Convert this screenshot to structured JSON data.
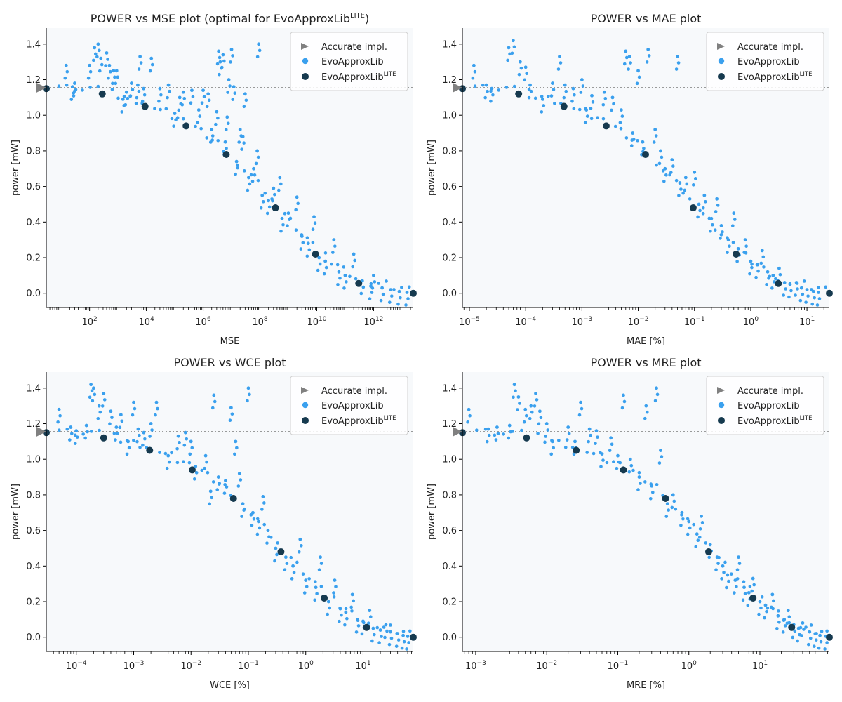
{
  "theme": {
    "accent": "#3aa0ee",
    "lite": "#163a4f",
    "accurate": "#808080",
    "plot_bg": "#f7f9fb",
    "ref_line": "#7a7a7a"
  },
  "legend_items": {
    "accurate": "Accurate impl.",
    "evo": "EvoApproxLib",
    "lite_base": "EvoApproxLib",
    "lite_sup": "LITE"
  },
  "chart_data": [
    {
      "type": "scatter",
      "title": "POWER vs MSE plot (optimal for EvoApproxLib",
      "title_sup": "LITE",
      "title_tail": ")",
      "xlabel": "MSE",
      "ylabel": "power [mW]",
      "xscale": "log",
      "xlim": [
        3,
        25000000000000.0
      ],
      "ylim": [
        -0.08,
        1.49
      ],
      "xticks": [
        {
          "v": 100,
          "b": "10",
          "e": "2"
        },
        {
          "v": 10000,
          "b": "10",
          "e": "4"
        },
        {
          "v": 1000000,
          "b": "10",
          "e": "6"
        },
        {
          "v": 100000000,
          "b": "10",
          "e": "8"
        },
        {
          "v": 10000000000,
          "b": "10",
          "e": "10"
        },
        {
          "v": 1000000000000,
          "b": "10",
          "e": "12"
        }
      ],
      "yticks": [
        "0.0",
        "0.2",
        "0.4",
        "0.6",
        "0.8",
        "1.0",
        "1.2",
        "1.4"
      ],
      "ref_power": 1.155,
      "legend": "top-right",
      "accurate": {
        "x": 3,
        "y": 1.155
      },
      "lite": {
        "x": [
          3,
          280,
          9000,
          250000,
          6500000,
          350000000,
          9000000000,
          300000000000,
          25000000000000
        ],
        "y": [
          1.15,
          1.12,
          1.05,
          0.94,
          0.78,
          0.48,
          0.22,
          0.055,
          0.0
        ]
      },
      "evo": [
        [
          15,
          1.28
        ],
        [
          25,
          1.16
        ],
        [
          30,
          1.18
        ],
        [
          100,
          1.28
        ],
        [
          150,
          1.38
        ],
        [
          200,
          1.4
        ],
        [
          250,
          1.32
        ],
        [
          400,
          1.35
        ],
        [
          500,
          1.28
        ],
        [
          700,
          1.25
        ],
        [
          900,
          1.25
        ],
        [
          1500,
          1.09
        ],
        [
          2000,
          1.13
        ],
        [
          3000,
          1.18
        ],
        [
          5000,
          1.17
        ],
        [
          6000,
          1.33
        ],
        [
          8000,
          1.15
        ],
        [
          15000,
          1.32
        ],
        [
          30000,
          1.15
        ],
        [
          60000,
          1.17
        ],
        [
          100000,
          1.01
        ],
        [
          150000,
          1.1
        ],
        [
          200000,
          1.13
        ],
        [
          400000,
          1.14
        ],
        [
          700000,
          1.03
        ],
        [
          1000000,
          1.14
        ],
        [
          1500000,
          1.12
        ],
        [
          2000000,
          0.92
        ],
        [
          3000000,
          1.02
        ],
        [
          3500000,
          1.36
        ],
        [
          4000000,
          1.3
        ],
        [
          5000000,
          1.34
        ],
        [
          6000000,
          0.85
        ],
        [
          7000000,
          0.99
        ],
        [
          8000000,
          1.2
        ],
        [
          10000000,
          1.37
        ],
        [
          12000000,
          1.16
        ],
        [
          15000000,
          0.74
        ],
        [
          20000000,
          0.92
        ],
        [
          25000000,
          0.88
        ],
        [
          30000000,
          1.12
        ],
        [
          40000000,
          0.65
        ],
        [
          60000000,
          0.7
        ],
        [
          80000000,
          0.8
        ],
        [
          90000000,
          1.4
        ],
        [
          120000000,
          0.55
        ],
        [
          200000000,
          0.52
        ],
        [
          300000000,
          0.59
        ],
        [
          500000000,
          0.65
        ],
        [
          600000000,
          0.42
        ],
        [
          1000000000,
          0.45
        ],
        [
          2000000000,
          0.54
        ],
        [
          3000000000,
          0.32
        ],
        [
          5000000000,
          0.28
        ],
        [
          8000000000,
          0.43
        ],
        [
          12000000000,
          0.2
        ],
        [
          20000000000,
          0.18
        ],
        [
          40000000000,
          0.3
        ],
        [
          60000000000,
          0.12
        ],
        [
          100000000000,
          0.1
        ],
        [
          200000000000,
          0.22
        ],
        [
          400000000000,
          0.07
        ],
        [
          800000000000,
          0.04
        ],
        [
          1000000000000,
          0.1
        ],
        [
          2000000000000,
          0.03
        ],
        [
          4000000000000,
          0.02
        ],
        [
          8000000000000,
          0.01
        ],
        [
          15000000000000,
          0.005
        ]
      ]
    },
    {
      "type": "scatter",
      "title": "POWER vs MAE plot",
      "xlabel": "MAE [%]",
      "ylabel": "power [mW]",
      "xscale": "log",
      "xlim": [
        7.5e-06,
        25
      ],
      "ylim": [
        -0.08,
        1.49
      ],
      "xticks": [
        {
          "v": 1e-05,
          "b": "10",
          "e": "−5"
        },
        {
          "v": 0.0001,
          "b": "10",
          "e": "−4"
        },
        {
          "v": 0.001,
          "b": "10",
          "e": "−3"
        },
        {
          "v": 0.01,
          "b": "10",
          "e": "−2"
        },
        {
          "v": 0.1,
          "b": "10",
          "e": "−1"
        },
        {
          "v": 1,
          "b": "10",
          "e": "0"
        },
        {
          "v": 10,
          "b": "10",
          "e": "1"
        }
      ],
      "yticks": [
        "0.0",
        "0.2",
        "0.4",
        "0.6",
        "0.8",
        "1.0",
        "1.2",
        "1.4"
      ],
      "ref_power": 1.155,
      "legend": "top-right",
      "accurate": {
        "x": 7.5e-06,
        "y": 1.155
      },
      "lite": {
        "x": [
          7.5e-06,
          7.5e-05,
          0.00048,
          0.0027,
          0.0135,
          0.095,
          0.55,
          3.1,
          25
        ],
        "y": [
          1.15,
          1.12,
          1.05,
          0.94,
          0.78,
          0.48,
          0.22,
          0.055,
          0.0
        ]
      },
      "evo": [
        [
          1.2e-05,
          1.28
        ],
        [
          2e-05,
          1.17
        ],
        [
          2.5e-05,
          1.15
        ],
        [
          5e-05,
          1.38
        ],
        [
          6e-05,
          1.42
        ],
        [
          8e-05,
          1.3
        ],
        [
          0.0001,
          1.27
        ],
        [
          0.00012,
          1.17
        ],
        [
          0.0002,
          1.09
        ],
        [
          0.0003,
          1.18
        ],
        [
          0.0004,
          1.33
        ],
        [
          0.0005,
          1.17
        ],
        [
          0.0007,
          1.15
        ],
        [
          0.001,
          1.2
        ],
        [
          0.0012,
          1.03
        ],
        [
          0.0015,
          1.11
        ],
        [
          0.0025,
          1.13
        ],
        [
          0.0035,
          1.1
        ],
        [
          0.005,
          1.03
        ],
        [
          0.006,
          1.36
        ],
        [
          0.007,
          1.33
        ],
        [
          0.008,
          0.9
        ],
        [
          0.01,
          1.25
        ],
        [
          0.012,
          0.85
        ],
        [
          0.015,
          1.37
        ],
        [
          0.02,
          0.92
        ],
        [
          0.025,
          0.8
        ],
        [
          0.03,
          0.7
        ],
        [
          0.04,
          0.75
        ],
        [
          0.05,
          1.33
        ],
        [
          0.055,
          0.62
        ],
        [
          0.07,
          0.65
        ],
        [
          0.1,
          0.68
        ],
        [
          0.12,
          0.5
        ],
        [
          0.15,
          0.55
        ],
        [
          0.2,
          0.42
        ],
        [
          0.25,
          0.53
        ],
        [
          0.3,
          0.38
        ],
        [
          0.4,
          0.3
        ],
        [
          0.5,
          0.45
        ],
        [
          0.6,
          0.25
        ],
        [
          0.8,
          0.3
        ],
        [
          1,
          0.18
        ],
        [
          1.3,
          0.16
        ],
        [
          1.6,
          0.24
        ],
        [
          2,
          0.12
        ],
        [
          2.5,
          0.1
        ],
        [
          3.2,
          0.14
        ],
        [
          4,
          0.06
        ],
        [
          5,
          0.05
        ],
        [
          6.5,
          0.06
        ],
        [
          8,
          0.03
        ],
        [
          10,
          0.02
        ],
        [
          13,
          0.01
        ],
        [
          16,
          0.005
        ]
      ]
    },
    {
      "type": "scatter",
      "title": "POWER vs WCE plot",
      "xlabel": "WCE [%]",
      "ylabel": "power [mW]",
      "xscale": "log",
      "xlim": [
        3e-05,
        75
      ],
      "ylim": [
        -0.08,
        1.49
      ],
      "xticks": [
        {
          "v": 0.0001,
          "b": "10",
          "e": "−4"
        },
        {
          "v": 0.001,
          "b": "10",
          "e": "−3"
        },
        {
          "v": 0.01,
          "b": "10",
          "e": "−2"
        },
        {
          "v": 0.1,
          "b": "10",
          "e": "−1"
        },
        {
          "v": 1,
          "b": "10",
          "e": "0"
        },
        {
          "v": 10,
          "b": "10",
          "e": "1"
        }
      ],
      "yticks": [
        "0.0",
        "0.2",
        "0.4",
        "0.6",
        "0.8",
        "1.0",
        "1.2",
        "1.4"
      ],
      "ref_power": 1.155,
      "legend": "top-right",
      "accurate": {
        "x": 3e-05,
        "y": 1.155
      },
      "lite": {
        "x": [
          3e-05,
          0.0003,
          0.0019,
          0.0105,
          0.055,
          0.37,
          2.1,
          11.5,
          75
        ],
        "y": [
          1.15,
          1.12,
          1.05,
          0.94,
          0.78,
          0.48,
          0.22,
          0.055,
          0.0
        ]
      },
      "evo": [
        [
          5e-05,
          1.28
        ],
        [
          8e-05,
          1.18
        ],
        [
          0.0001,
          1.16
        ],
        [
          0.00015,
          1.19
        ],
        [
          0.00018,
          1.42
        ],
        [
          0.0002,
          1.4
        ],
        [
          0.00025,
          1.3
        ],
        [
          0.0003,
          1.37
        ],
        [
          0.0004,
          1.27
        ],
        [
          0.0005,
          1.18
        ],
        [
          0.0006,
          1.25
        ],
        [
          0.0008,
          1.1
        ],
        [
          0.001,
          1.32
        ],
        [
          0.0012,
          1.17
        ],
        [
          0.0015,
          1.15
        ],
        [
          0.002,
          1.2
        ],
        [
          0.0025,
          1.32
        ],
        [
          0.004,
          1.02
        ],
        [
          0.006,
          1.13
        ],
        [
          0.008,
          1.15
        ],
        [
          0.01,
          1.1
        ],
        [
          0.012,
          0.96
        ],
        [
          0.018,
          1.02
        ],
        [
          0.022,
          0.82
        ],
        [
          0.025,
          1.36
        ],
        [
          0.03,
          0.9
        ],
        [
          0.04,
          0.88
        ],
        [
          0.05,
          1.29
        ],
        [
          0.06,
          1.1
        ],
        [
          0.07,
          0.92
        ],
        [
          0.08,
          0.75
        ],
        [
          0.1,
          1.4
        ],
        [
          0.12,
          0.7
        ],
        [
          0.15,
          0.65
        ],
        [
          0.18,
          0.79
        ],
        [
          0.22,
          0.6
        ],
        [
          0.3,
          0.5
        ],
        [
          0.45,
          0.45
        ],
        [
          0.6,
          0.4
        ],
        [
          0.8,
          0.55
        ],
        [
          1,
          0.32
        ],
        [
          1.5,
          0.28
        ],
        [
          1.8,
          0.45
        ],
        [
          2.5,
          0.2
        ],
        [
          3.2,
          0.32
        ],
        [
          4,
          0.16
        ],
        [
          5,
          0.14
        ],
        [
          6.5,
          0.24
        ],
        [
          8,
          0.1
        ],
        [
          10,
          0.09
        ],
        [
          13,
          0.15
        ],
        [
          15,
          0.05
        ],
        [
          20,
          0.04
        ],
        [
          25,
          0.07
        ],
        [
          30,
          0.03
        ],
        [
          40,
          0.02
        ],
        [
          50,
          0.01
        ],
        [
          60,
          0.005
        ]
      ]
    },
    {
      "type": "scatter",
      "title": "POWER vs MRE plot",
      "xlabel": "MRE [%]",
      "ylabel": "power [mW]",
      "xscale": "log",
      "xlim": [
        0.00065,
        95
      ],
      "ylim": [
        -0.08,
        1.49
      ],
      "xticks": [
        {
          "v": 0.001,
          "b": "10",
          "e": "−3"
        },
        {
          "v": 0.01,
          "b": "10",
          "e": "−2"
        },
        {
          "v": 0.1,
          "b": "10",
          "e": "−1"
        },
        {
          "v": 1,
          "b": "10",
          "e": "0"
        },
        {
          "v": 10,
          "b": "10",
          "e": "1"
        }
      ],
      "yticks": [
        "0.0",
        "0.2",
        "0.4",
        "0.6",
        "0.8",
        "1.0",
        "1.2",
        "1.4"
      ],
      "ref_power": 1.155,
      "legend": "top-right",
      "accurate": {
        "x": 0.00065,
        "y": 1.155
      },
      "lite": {
        "x": [
          0.00065,
          0.0052,
          0.026,
          0.12,
          0.47,
          1.9,
          8,
          28,
          95
        ],
        "y": [
          1.15,
          1.12,
          1.05,
          0.94,
          0.78,
          0.48,
          0.22,
          0.055,
          0.0
        ]
      },
      "evo": [
        [
          0.0008,
          1.28
        ],
        [
          0.0015,
          1.17
        ],
        [
          0.002,
          1.18
        ],
        [
          0.003,
          1.19
        ],
        [
          0.0035,
          1.42
        ],
        [
          0.004,
          1.35
        ],
        [
          0.005,
          1.28
        ],
        [
          0.006,
          1.3
        ],
        [
          0.007,
          1.37
        ],
        [
          0.008,
          1.27
        ],
        [
          0.01,
          1.2
        ],
        [
          0.012,
          1.1
        ],
        [
          0.02,
          1.18
        ],
        [
          0.025,
          1.1
        ],
        [
          0.03,
          1.32
        ],
        [
          0.04,
          1.17
        ],
        [
          0.05,
          1.16
        ],
        [
          0.06,
          1.03
        ],
        [
          0.08,
          1.12
        ],
        [
          0.1,
          1.02
        ],
        [
          0.12,
          1.36
        ],
        [
          0.15,
          1.0
        ],
        [
          0.2,
          0.9
        ],
        [
          0.25,
          1.3
        ],
        [
          0.3,
          0.85
        ],
        [
          0.35,
          1.4
        ],
        [
          0.4,
          1.05
        ],
        [
          0.5,
          0.75
        ],
        [
          0.6,
          0.8
        ],
        [
          0.8,
          0.7
        ],
        [
          1,
          0.65
        ],
        [
          1.3,
          0.58
        ],
        [
          1.5,
          0.68
        ],
        [
          2,
          0.52
        ],
        [
          2.5,
          0.45
        ],
        [
          3,
          0.4
        ],
        [
          3.5,
          0.35
        ],
        [
          4.5,
          0.32
        ],
        [
          5,
          0.45
        ],
        [
          6,
          0.28
        ],
        [
          7,
          0.25
        ],
        [
          8,
          0.33
        ],
        [
          10,
          0.2
        ],
        [
          12,
          0.18
        ],
        [
          15,
          0.24
        ],
        [
          18,
          0.12
        ],
        [
          22,
          0.1
        ],
        [
          25,
          0.15
        ],
        [
          30,
          0.07
        ],
        [
          35,
          0.05
        ],
        [
          40,
          0.08
        ],
        [
          50,
          0.03
        ],
        [
          60,
          0.02
        ],
        [
          70,
          0.01
        ],
        [
          85,
          0.005
        ]
      ]
    }
  ]
}
